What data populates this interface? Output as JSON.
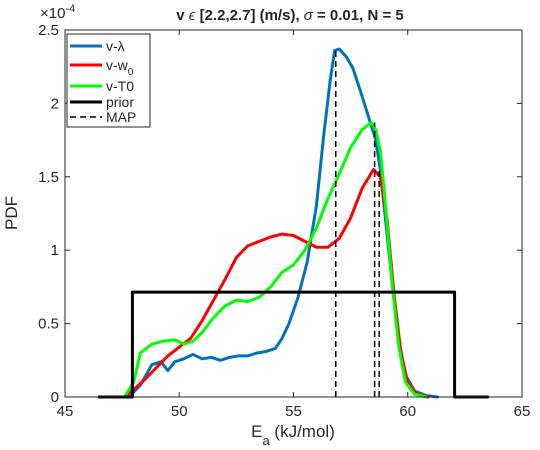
{
  "chart_data": {
    "type": "line",
    "title_parts": {
      "lead": "v ",
      "elem": "ϵ",
      "range": " [2.2,2.7] (m/s), ",
      "sigma": "σ",
      "rest": " = 0.01, N = 5"
    },
    "xlabel": {
      "main": "E",
      "sub": "a",
      "rest": " (kJ/mol)"
    },
    "ylabel": "PDF",
    "y_exponent": {
      "base": "×10",
      "exp": "-4"
    },
    "xlim": [
      45,
      65
    ],
    "ylim": [
      0,
      2.5
    ],
    "xticks": [
      "45",
      "50",
      "55",
      "60",
      "65"
    ],
    "yticks": [
      "0",
      "0.5",
      "1",
      "1.5",
      "2",
      "2.5"
    ],
    "grid": false,
    "legend_position": "top-left",
    "legend": [
      {
        "label": "v-λ",
        "color": "#0072BD",
        "dash": false
      },
      {
        "label_main": "v-w",
        "label_sub": "0",
        "color": "#FF0000",
        "dash": false
      },
      {
        "label": "v-T0",
        "color": "#00FF00",
        "dash": false
      },
      {
        "label": "prior",
        "color": "#000000",
        "dash": false
      },
      {
        "label": "MAP",
        "color": "#000000",
        "dash": true
      }
    ],
    "series": [
      {
        "name": "v-λ",
        "color": "#0072BD",
        "x": [
          46.5,
          47.8,
          48.3,
          48.8,
          49.2,
          49.5,
          49.8,
          50.2,
          50.6,
          51.0,
          51.4,
          51.8,
          52.2,
          52.6,
          53.0,
          53.4,
          53.8,
          54.2,
          54.5,
          54.8,
          55.2,
          55.6,
          56.0,
          56.3,
          56.6,
          56.8,
          57.0,
          57.3,
          57.6,
          58.0,
          58.3,
          58.6,
          58.8,
          59.0,
          59.3,
          59.6,
          59.9,
          60.3,
          60.8,
          61.3
        ],
        "y": [
          0,
          0,
          0.08,
          0.22,
          0.24,
          0.18,
          0.24,
          0.26,
          0.29,
          0.26,
          0.27,
          0.25,
          0.27,
          0.28,
          0.28,
          0.3,
          0.31,
          0.33,
          0.4,
          0.5,
          0.68,
          0.92,
          1.3,
          1.75,
          2.15,
          2.36,
          2.37,
          2.32,
          2.24,
          2.05,
          1.9,
          1.75,
          1.55,
          1.25,
          0.8,
          0.4,
          0.15,
          0.04,
          0.01,
          0
        ]
      },
      {
        "name": "v-w0",
        "color": "#FF0000",
        "x": [
          46.5,
          47.6,
          48.0,
          48.5,
          49.0,
          49.5,
          50.0,
          50.5,
          51.0,
          51.5,
          52.0,
          52.5,
          53.0,
          53.5,
          54.0,
          54.5,
          55.0,
          55.5,
          56.0,
          56.5,
          57.0,
          57.5,
          58.0,
          58.5,
          58.8,
          59.1,
          59.4,
          59.7,
          60.0,
          60.4,
          60.9
        ],
        "y": [
          0,
          0,
          0.05,
          0.12,
          0.2,
          0.28,
          0.34,
          0.4,
          0.52,
          0.66,
          0.8,
          0.95,
          1.03,
          1.06,
          1.09,
          1.11,
          1.1,
          1.06,
          1.02,
          1.02,
          1.08,
          1.22,
          1.42,
          1.55,
          1.5,
          1.2,
          0.7,
          0.3,
          0.1,
          0.02,
          0
        ]
      },
      {
        "name": "v-T0",
        "color": "#00FF00",
        "x": [
          46.5,
          47.6,
          48.0,
          48.3,
          48.8,
          49.3,
          49.8,
          50.2,
          50.6,
          51.0,
          51.5,
          52.0,
          52.5,
          53.0,
          53.5,
          54.0,
          54.5,
          55.0,
          55.5,
          56.0,
          56.5,
          57.0,
          57.5,
          58.0,
          58.4,
          58.6,
          58.8,
          59.0,
          59.3,
          59.6,
          59.9,
          60.3,
          60.8
        ],
        "y": [
          0,
          0,
          0.1,
          0.3,
          0.36,
          0.38,
          0.39,
          0.36,
          0.38,
          0.44,
          0.54,
          0.62,
          0.66,
          0.65,
          0.68,
          0.75,
          0.85,
          0.9,
          1.0,
          1.15,
          1.35,
          1.52,
          1.7,
          1.82,
          1.87,
          1.82,
          1.68,
          1.35,
          0.8,
          0.35,
          0.1,
          0.02,
          0
        ]
      },
      {
        "name": "prior",
        "color": "#000000",
        "x": [
          46.5,
          47.95,
          47.95,
          62.05,
          62.05,
          63.5
        ],
        "y": [
          0,
          0,
          0.714,
          0.714,
          0,
          0
        ]
      }
    ],
    "map_lines": [
      {
        "x": 56.85,
        "y": 2.37,
        "color": "#000000"
      },
      {
        "x": 58.55,
        "y": 1.87,
        "color": "#000000"
      },
      {
        "x": 58.75,
        "y": 1.55,
        "color": "#000000"
      }
    ]
  }
}
